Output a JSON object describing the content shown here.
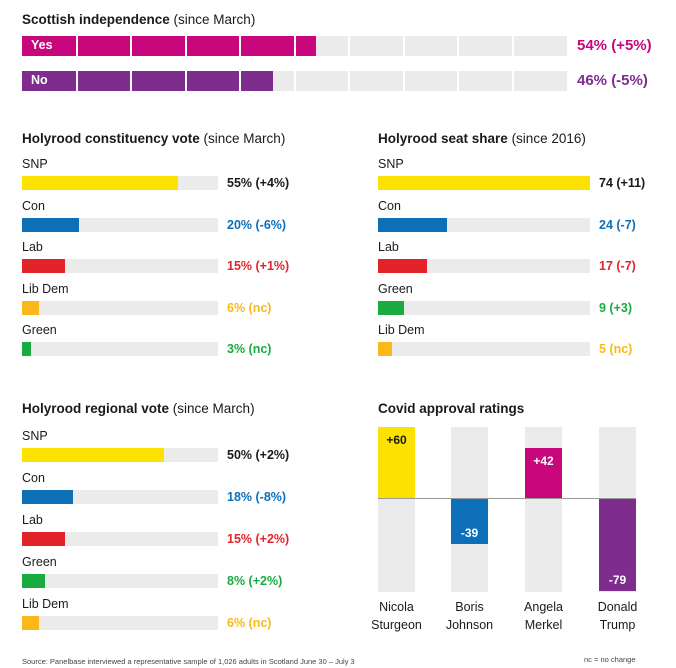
{
  "colors": {
    "SNP": "#fbe200",
    "Con": "#0c6fb8",
    "Lab": "#e3232b",
    "LibDem": "#fbb81a",
    "Green": "#1aaa42",
    "Yes": "#c8077c",
    "No": "#7e2c8e",
    "track": "#ebebeb"
  },
  "independence": {
    "title": "Scottish independence",
    "subtitle": "(since March)",
    "yes": {
      "label": "Yes",
      "value": 54,
      "text": "54% (+5%)"
    },
    "no": {
      "label": "No",
      "value": 46,
      "text": "46% (-5%)"
    }
  },
  "constituency": {
    "title": "Holyrood constituency vote",
    "subtitle": "(since March)",
    "max": 100,
    "items": [
      {
        "party": "SNP",
        "value": 55,
        "text": "55% (+4%)",
        "color": "#fbe200",
        "textColor": "#1a1a1a"
      },
      {
        "party": "Con",
        "value": 20,
        "text": "20% (-6%)",
        "color": "#0c6fb8",
        "textColor": "#0c6fb8"
      },
      {
        "party": "Lab",
        "value": 15,
        "text": "15% (+1%)",
        "color": "#e3232b",
        "textColor": "#e3232b"
      },
      {
        "party": "Lib Dem",
        "value": 6,
        "text": "6% (nc)",
        "color": "#fbb81a",
        "textColor": "#fbb81a"
      },
      {
        "party": "Green",
        "value": 3,
        "text": "3% (nc)",
        "color": "#1aaa42",
        "textColor": "#1aaa42"
      }
    ]
  },
  "seats": {
    "title": "Holyrood seat share",
    "subtitle": "(since 2016)",
    "max": 74,
    "items": [
      {
        "party": "SNP",
        "value": 74,
        "text": "74 (+11)",
        "color": "#fbe200",
        "textColor": "#1a1a1a"
      },
      {
        "party": "Con",
        "value": 24,
        "text": "24 (-7)",
        "color": "#0c6fb8",
        "textColor": "#0c6fb8"
      },
      {
        "party": "Lab",
        "value": 17,
        "text": "17 (-7)",
        "color": "#e3232b",
        "textColor": "#e3232b"
      },
      {
        "party": "Green",
        "value": 9,
        "text": "9 (+3)",
        "color": "#1aaa42",
        "textColor": "#1aaa42"
      },
      {
        "party": "Lib Dem",
        "value": 5,
        "text": "5 (nc)",
        "color": "#fbb81a",
        "textColor": "#fbb81a"
      }
    ]
  },
  "regional": {
    "title": "Holyrood regional vote",
    "subtitle": "(since March)",
    "max": 100,
    "items": [
      {
        "party": "SNP",
        "value": 50,
        "text": "50% (+2%)",
        "color": "#fbe200",
        "textColor": "#1a1a1a"
      },
      {
        "party": "Con",
        "value": 18,
        "text": "18% (-8%)",
        "color": "#0c6fb8",
        "textColor": "#0c6fb8"
      },
      {
        "party": "Lab",
        "value": 15,
        "text": "15% (+2%)",
        "color": "#e3232b",
        "textColor": "#e3232b"
      },
      {
        "party": "Green",
        "value": 8,
        "text": "8% (+2%)",
        "color": "#1aaa42",
        "textColor": "#1aaa42"
      },
      {
        "party": "Lib Dem",
        "value": 6,
        "text": "6% (nc)",
        "color": "#fbb81a",
        "textColor": "#fbb81a"
      }
    ]
  },
  "covid": {
    "title": "Covid approval ratings",
    "range": [
      -100,
      100
    ],
    "items": [
      {
        "first": "Nicola",
        "last": "Sturgeon",
        "value": 60,
        "text": "+60",
        "color": "#fbe200",
        "textColor": "#1a1a1a"
      },
      {
        "first": "Boris",
        "last": "Johnson",
        "value": -39,
        "text": "-39",
        "color": "#0c6fb8",
        "textColor": "#ffffff"
      },
      {
        "first": "Angela",
        "last": "Merkel",
        "value": 42,
        "text": "+42",
        "color": "#c8077c",
        "textColor": "#ffffff"
      },
      {
        "first": "Donald",
        "last": "Trump",
        "value": -79,
        "text": "-79",
        "color": "#7e2c8e",
        "textColor": "#ffffff"
      }
    ]
  },
  "footer": {
    "source": "Source: Panelbase interviewed a representative sample of 1,026 adults in Scotland June 30 – July 3",
    "note": "nc = no change"
  },
  "chart_data": [
    {
      "type": "bar",
      "title": "Scottish independence (since March)",
      "categories": [
        "Yes",
        "No"
      ],
      "values": [
        54,
        46
      ],
      "labels": [
        "54% (+5%)",
        "46% (-5%)"
      ],
      "xlim": [
        0,
        100
      ]
    },
    {
      "type": "bar",
      "title": "Holyrood constituency vote (since March)",
      "categories": [
        "SNP",
        "Con",
        "Lab",
        "Lib Dem",
        "Green"
      ],
      "values": [
        55,
        20,
        15,
        6,
        3
      ],
      "labels": [
        "55% (+4%)",
        "20% (-6%)",
        "15% (+1%)",
        "6% (nc)",
        "3% (nc)"
      ]
    },
    {
      "type": "bar",
      "title": "Holyrood seat share (since 2016)",
      "categories": [
        "SNP",
        "Con",
        "Lab",
        "Green",
        "Lib Dem"
      ],
      "values": [
        74,
        24,
        17,
        9,
        5
      ],
      "labels": [
        "74 (+11)",
        "24 (-7)",
        "17 (-7)",
        "9 (+3)",
        "5 (nc)"
      ]
    },
    {
      "type": "bar",
      "title": "Holyrood regional vote (since March)",
      "categories": [
        "SNP",
        "Con",
        "Lab",
        "Green",
        "Lib Dem"
      ],
      "values": [
        50,
        18,
        15,
        8,
        6
      ],
      "labels": [
        "50% (+2%)",
        "18% (-8%)",
        "15% (+2%)",
        "8% (+2%)",
        "6% (nc)"
      ]
    },
    {
      "type": "bar",
      "title": "Covid approval ratings",
      "categories": [
        "Nicola Sturgeon",
        "Boris Johnson",
        "Angela Merkel",
        "Donald Trump"
      ],
      "values": [
        60,
        -39,
        42,
        -79
      ],
      "ylim": [
        -100,
        100
      ]
    }
  ]
}
